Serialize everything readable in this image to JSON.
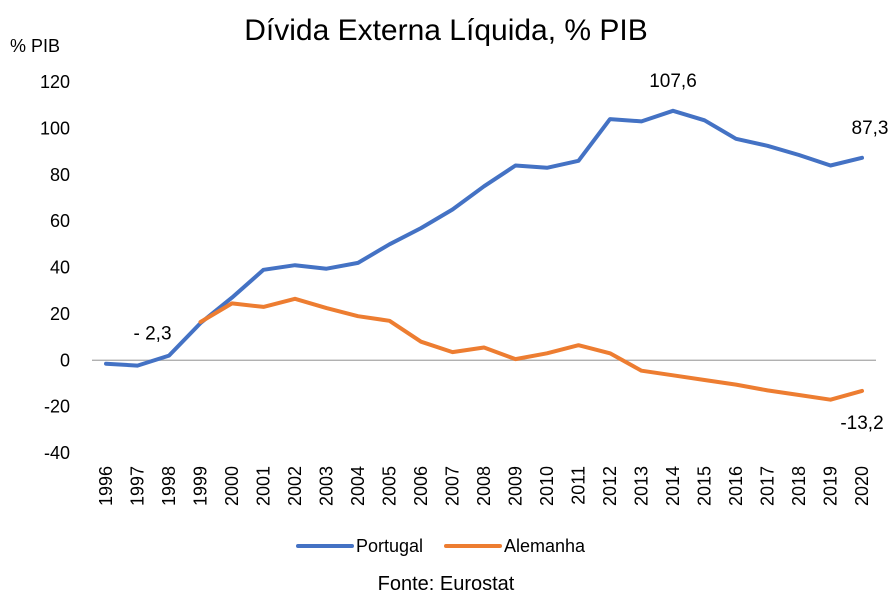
{
  "title": "Dívida Externa Líquida, % PIB",
  "y_unit": "% PIB",
  "source": "Fonte: Eurostat",
  "colors": {
    "Portugal": "#4472C4",
    "Alemanha": "#ED7D31",
    "axis": "#a6a6a6"
  },
  "chart_data": {
    "type": "line",
    "title": "Dívida Externa Líquida, % PIB",
    "ylabel": "% PIB",
    "xlabel": "",
    "ylim": [
      -40,
      120
    ],
    "yticks": [
      -40,
      -20,
      0,
      20,
      40,
      60,
      80,
      100,
      120
    ],
    "categories": [
      "1996",
      "1997",
      "1998",
      "1999",
      "2000",
      "2001",
      "2002",
      "2003",
      "2004",
      "2005",
      "2006",
      "2007",
      "2008",
      "2009",
      "2010",
      "2011",
      "2012",
      "2013",
      "2014",
      "2015",
      "2016",
      "2017",
      "2018",
      "2019",
      "2020"
    ],
    "series": [
      {
        "name": "Portugal",
        "values": [
          -1.5,
          -2.3,
          2.0,
          16.0,
          27.0,
          39.0,
          41.0,
          39.5,
          42.0,
          50.0,
          57.0,
          65.0,
          75.0,
          84.0,
          83.0,
          86.0,
          104.0,
          103.0,
          107.6,
          103.5,
          95.5,
          92.5,
          88.5,
          84.0,
          87.3
        ]
      },
      {
        "name": "Alemanha",
        "values": [
          null,
          null,
          null,
          16.5,
          24.5,
          23.0,
          26.5,
          22.5,
          19.0,
          17.0,
          8.0,
          3.5,
          5.5,
          0.5,
          3.0,
          6.5,
          3.0,
          -4.5,
          -6.5,
          -8.5,
          -10.5,
          -13.0,
          -15.0,
          -17.0,
          -13.2
        ]
      }
    ],
    "annotations": [
      {
        "text": "- 2,3",
        "series": "Portugal",
        "category": "1997"
      },
      {
        "text": "107,6",
        "series": "Portugal",
        "category": "2014"
      },
      {
        "text": "87,3",
        "series": "Portugal",
        "category": "2020"
      },
      {
        "text": "-13,2",
        "series": "Alemanha",
        "category": "2020"
      }
    ],
    "legend": {
      "position": "bottom",
      "entries": [
        "Portugal",
        "Alemanha"
      ]
    },
    "grid": false
  }
}
